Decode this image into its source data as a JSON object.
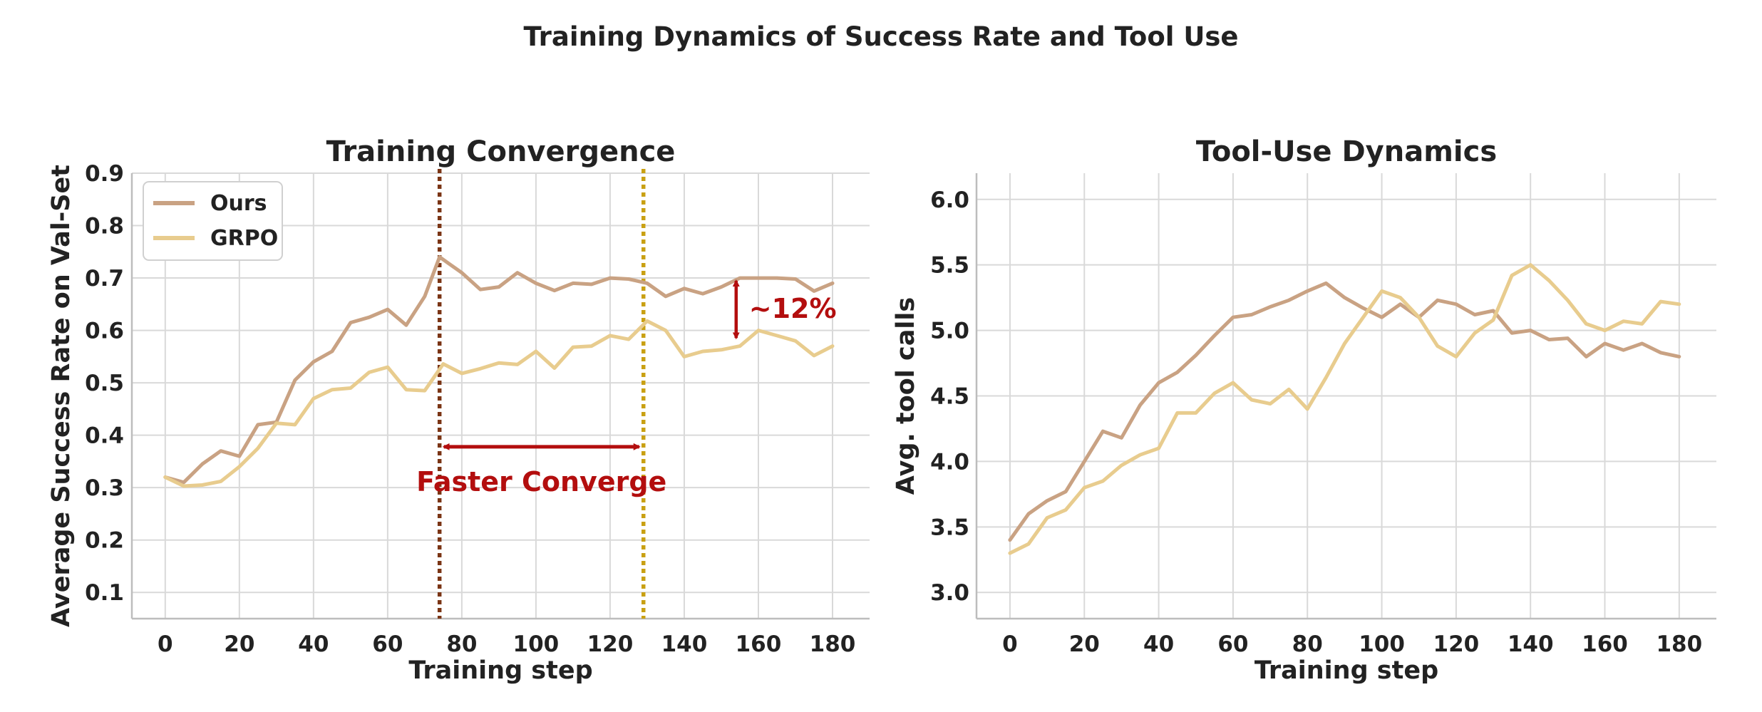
{
  "figure": {
    "title": "Training Dynamics of Success Rate and Tool Use"
  },
  "colors": {
    "ours": "#c9a283",
    "grpo": "#e8cc8e",
    "annotation": "#b30e0e",
    "vline_ours": "#7a3414",
    "vline_grpo": "#c9a012",
    "grid": "#d9d9d9",
    "axis": "#bdbdbd"
  },
  "chart_data": [
    {
      "type": "line",
      "title": "Training Convergence",
      "xlabel": "Training step",
      "ylabel": "Average Success Rate on Val-Set",
      "xlim": [
        -9,
        190
      ],
      "ylim": [
        0.05,
        0.9
      ],
      "xticks": [
        0,
        20,
        40,
        60,
        80,
        100,
        120,
        140,
        160,
        180
      ],
      "yticks": [
        0.1,
        0.2,
        0.3,
        0.4,
        0.5,
        0.6,
        0.7,
        0.8,
        0.9
      ],
      "grid": true,
      "legend": "top-left",
      "series": [
        {
          "name": "Ours",
          "x": [
            0,
            5,
            10,
            15,
            20,
            25,
            30,
            35,
            40,
            45,
            50,
            55,
            60,
            65,
            70,
            74,
            80,
            85,
            90,
            95,
            100,
            105,
            110,
            115,
            120,
            125,
            130,
            135,
            140,
            145,
            150,
            155,
            160,
            165,
            170,
            175,
            180
          ],
          "values": [
            0.32,
            0.31,
            0.345,
            0.37,
            0.36,
            0.42,
            0.425,
            0.505,
            0.54,
            0.56,
            0.615,
            0.625,
            0.64,
            0.61,
            0.665,
            0.74,
            0.71,
            0.678,
            0.683,
            0.71,
            0.69,
            0.676,
            0.69,
            0.688,
            0.7,
            0.698,
            0.69,
            0.665,
            0.68,
            0.67,
            0.683,
            0.7,
            0.7,
            0.7,
            0.698,
            0.675,
            0.69
          ]
        },
        {
          "name": "GRPO",
          "x": [
            0,
            5,
            10,
            15,
            20,
            25,
            30,
            35,
            40,
            45,
            50,
            55,
            60,
            65,
            70,
            75,
            80,
            85,
            90,
            95,
            100,
            105,
            110,
            115,
            120,
            125,
            130,
            135,
            140,
            145,
            150,
            155,
            160,
            165,
            170,
            175,
            180
          ],
          "values": [
            0.32,
            0.303,
            0.305,
            0.312,
            0.34,
            0.375,
            0.423,
            0.42,
            0.47,
            0.487,
            0.49,
            0.52,
            0.53,
            0.487,
            0.485,
            0.536,
            0.518,
            0.527,
            0.538,
            0.535,
            0.56,
            0.528,
            0.568,
            0.57,
            0.59,
            0.583,
            0.618,
            0.6,
            0.55,
            0.56,
            0.563,
            0.57,
            0.6,
            0.59,
            0.58,
            0.552,
            0.57
          ]
        }
      ],
      "vlines": [
        74,
        129
      ],
      "annotations": {
        "converge_label": "Faster Converge",
        "gap_label": "~12%",
        "converge_arrow": {
          "x_from": 74,
          "x_to": 129,
          "y": 0.378
        },
        "gap_arrow": {
          "x": 154,
          "y_from": 0.7,
          "y_to": 0.58
        }
      }
    },
    {
      "type": "line",
      "title": "Tool-Use Dynamics",
      "xlabel": "Training step",
      "ylabel": "Avg. tool calls",
      "xlim": [
        -9,
        190
      ],
      "ylim": [
        2.8,
        6.2
      ],
      "xticks": [
        0,
        20,
        40,
        60,
        80,
        100,
        120,
        140,
        160,
        180
      ],
      "yticks": [
        3.0,
        3.5,
        4.0,
        4.5,
        5.0,
        5.5,
        6.0
      ],
      "grid": true,
      "series": [
        {
          "x": [
            0,
            5,
            10,
            15,
            20,
            25,
            30,
            35,
            40,
            45,
            50,
            55,
            60,
            65,
            70,
            75,
            80,
            85,
            90,
            95,
            100,
            105,
            110,
            115,
            120,
            125,
            130,
            135,
            140,
            145,
            150,
            155,
            160,
            165,
            170,
            175,
            180
          ],
          "values": [
            3.4,
            3.6,
            3.7,
            3.77,
            4.0,
            4.23,
            4.18,
            4.43,
            4.6,
            4.68,
            4.81,
            4.96,
            5.1,
            5.12,
            5.18,
            5.23,
            5.3,
            5.36,
            5.25,
            5.17,
            5.1,
            5.2,
            5.1,
            5.23,
            5.2,
            5.12,
            5.15,
            4.98,
            5.0,
            4.93,
            4.94,
            4.8,
            4.9,
            4.85,
            4.9,
            4.83,
            4.8
          ]
        },
        {
          "x": [
            0,
            5,
            10,
            15,
            20,
            25,
            30,
            35,
            40,
            45,
            50,
            55,
            60,
            65,
            70,
            75,
            80,
            85,
            90,
            95,
            100,
            105,
            110,
            115,
            120,
            125,
            130,
            135,
            140,
            145,
            150,
            155,
            160,
            165,
            170,
            175,
            180
          ],
          "values": [
            3.3,
            3.37,
            3.57,
            3.63,
            3.8,
            3.85,
            3.97,
            4.05,
            4.1,
            4.37,
            4.37,
            4.52,
            4.6,
            4.47,
            4.44,
            4.55,
            4.4,
            4.64,
            4.9,
            5.1,
            5.3,
            5.25,
            5.1,
            4.88,
            4.8,
            4.98,
            5.08,
            5.42,
            5.5,
            5.38,
            5.23,
            5.05,
            5.0,
            5.07,
            5.05,
            5.22,
            5.2
          ]
        }
      ]
    }
  ]
}
